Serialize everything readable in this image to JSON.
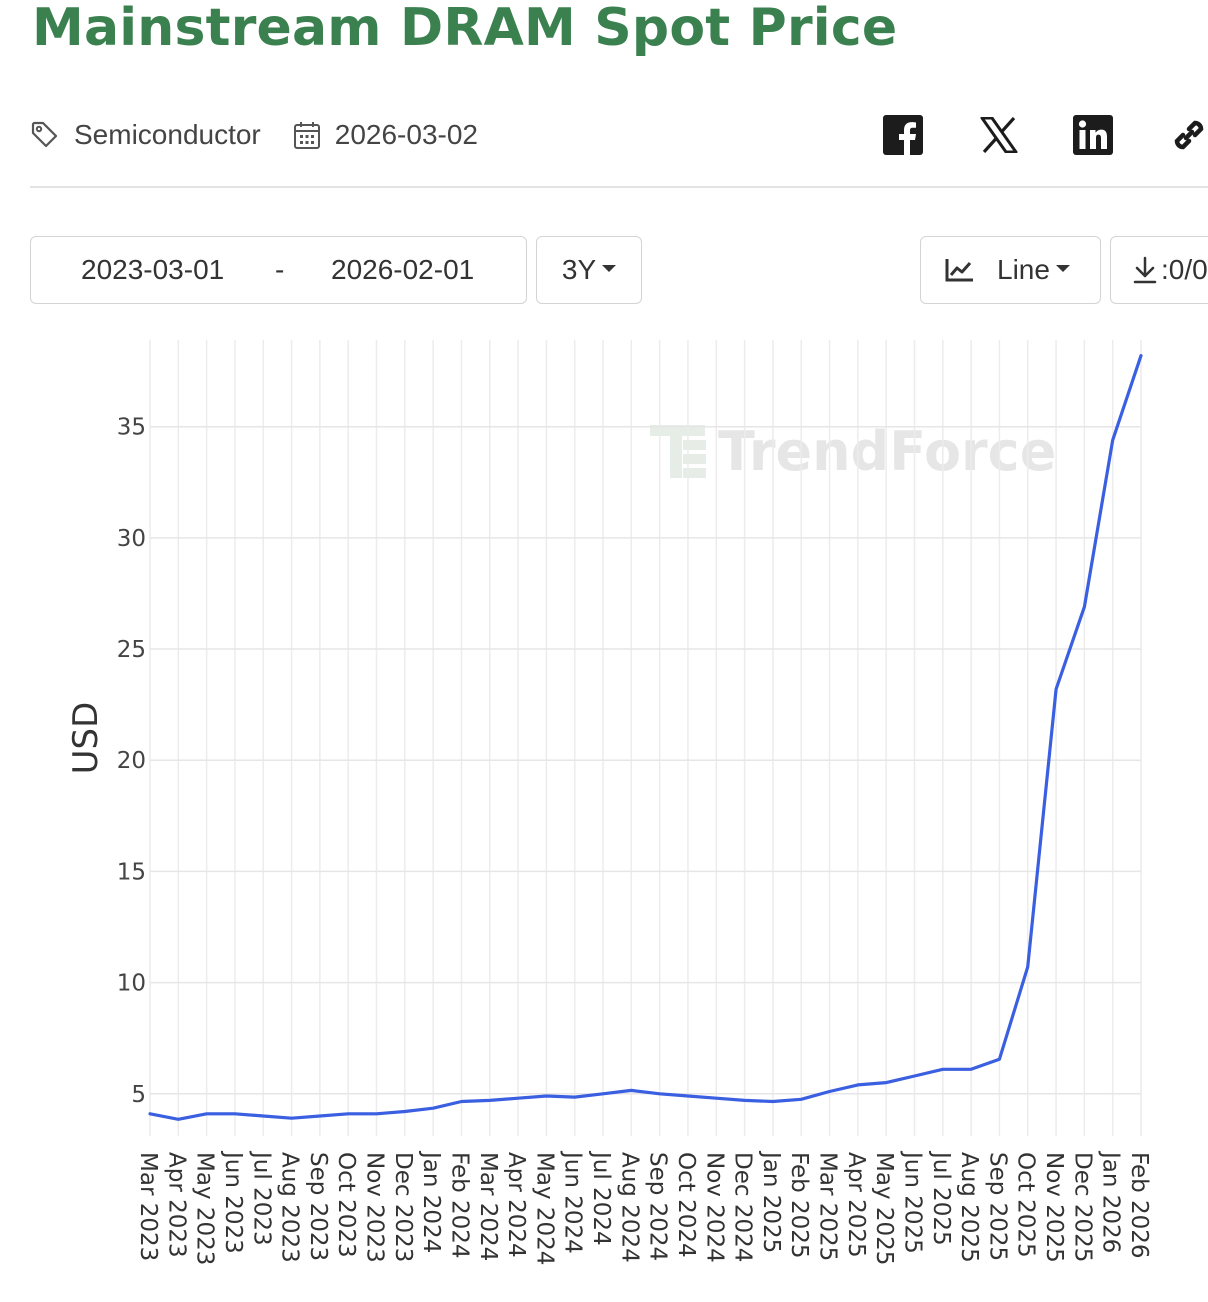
{
  "header": {
    "title": "Mainstream DRAM Spot Price",
    "title_color": "#3b8150",
    "category": "Semiconductor",
    "publish_date": "2026-03-02",
    "tag_icon": "tag-icon",
    "date_icon": "calendar-icon"
  },
  "share": {
    "icons": [
      "facebook-icon",
      "x-twitter-icon",
      "linkedin-icon",
      "link-icon"
    ]
  },
  "controls": {
    "start_date": "2023-03-01",
    "range_separator": "-",
    "end_date": "2026-02-01",
    "period": "3Y",
    "chart_type": "Line",
    "chart_type_icon": "line-chart-icon",
    "download_label": ":0/0",
    "download_icon": "download-icon"
  },
  "chart_data": {
    "type": "line",
    "ylabel": "USD",
    "xlabel": "",
    "watermark": "TrendForce",
    "grid": true,
    "line_color": "#3a5fe0",
    "yticks": [
      5,
      10,
      15,
      20,
      25,
      30,
      35
    ],
    "x": [
      "Mar 2023",
      "Apr 2023",
      "May 2023",
      "Jun 2023",
      "Jul 2023",
      "Aug 2023",
      "Sep 2023",
      "Oct 2023",
      "Nov 2023",
      "Dec 2023",
      "Jan 2024",
      "Feb 2024",
      "Mar 2024",
      "Apr 2024",
      "May 2024",
      "Jun 2024",
      "Jul 2024",
      "Aug 2024",
      "Sep 2024",
      "Oct 2024",
      "Nov 2024",
      "Dec 2024",
      "Jan 2025",
      "Feb 2025",
      "Mar 2025",
      "Apr 2025",
      "May 2025",
      "Jun 2025",
      "Jul 2025",
      "Aug 2025",
      "Sep 2025",
      "Oct 2025",
      "Nov 2025",
      "Dec 2025",
      "Jan 2026",
      "Feb 2026"
    ],
    "values": [
      4.1,
      3.85,
      4.1,
      4.1,
      4.0,
      3.9,
      4.0,
      4.1,
      4.1,
      4.2,
      4.35,
      4.65,
      4.7,
      4.8,
      4.9,
      4.85,
      5.0,
      5.15,
      5.0,
      4.9,
      4.8,
      4.7,
      4.65,
      4.75,
      5.1,
      5.4,
      5.5,
      5.8,
      6.1,
      6.1,
      6.55,
      10.7,
      23.2,
      26.9,
      34.4,
      38.2
    ],
    "ylim": [
      3.1,
      38.9
    ]
  }
}
